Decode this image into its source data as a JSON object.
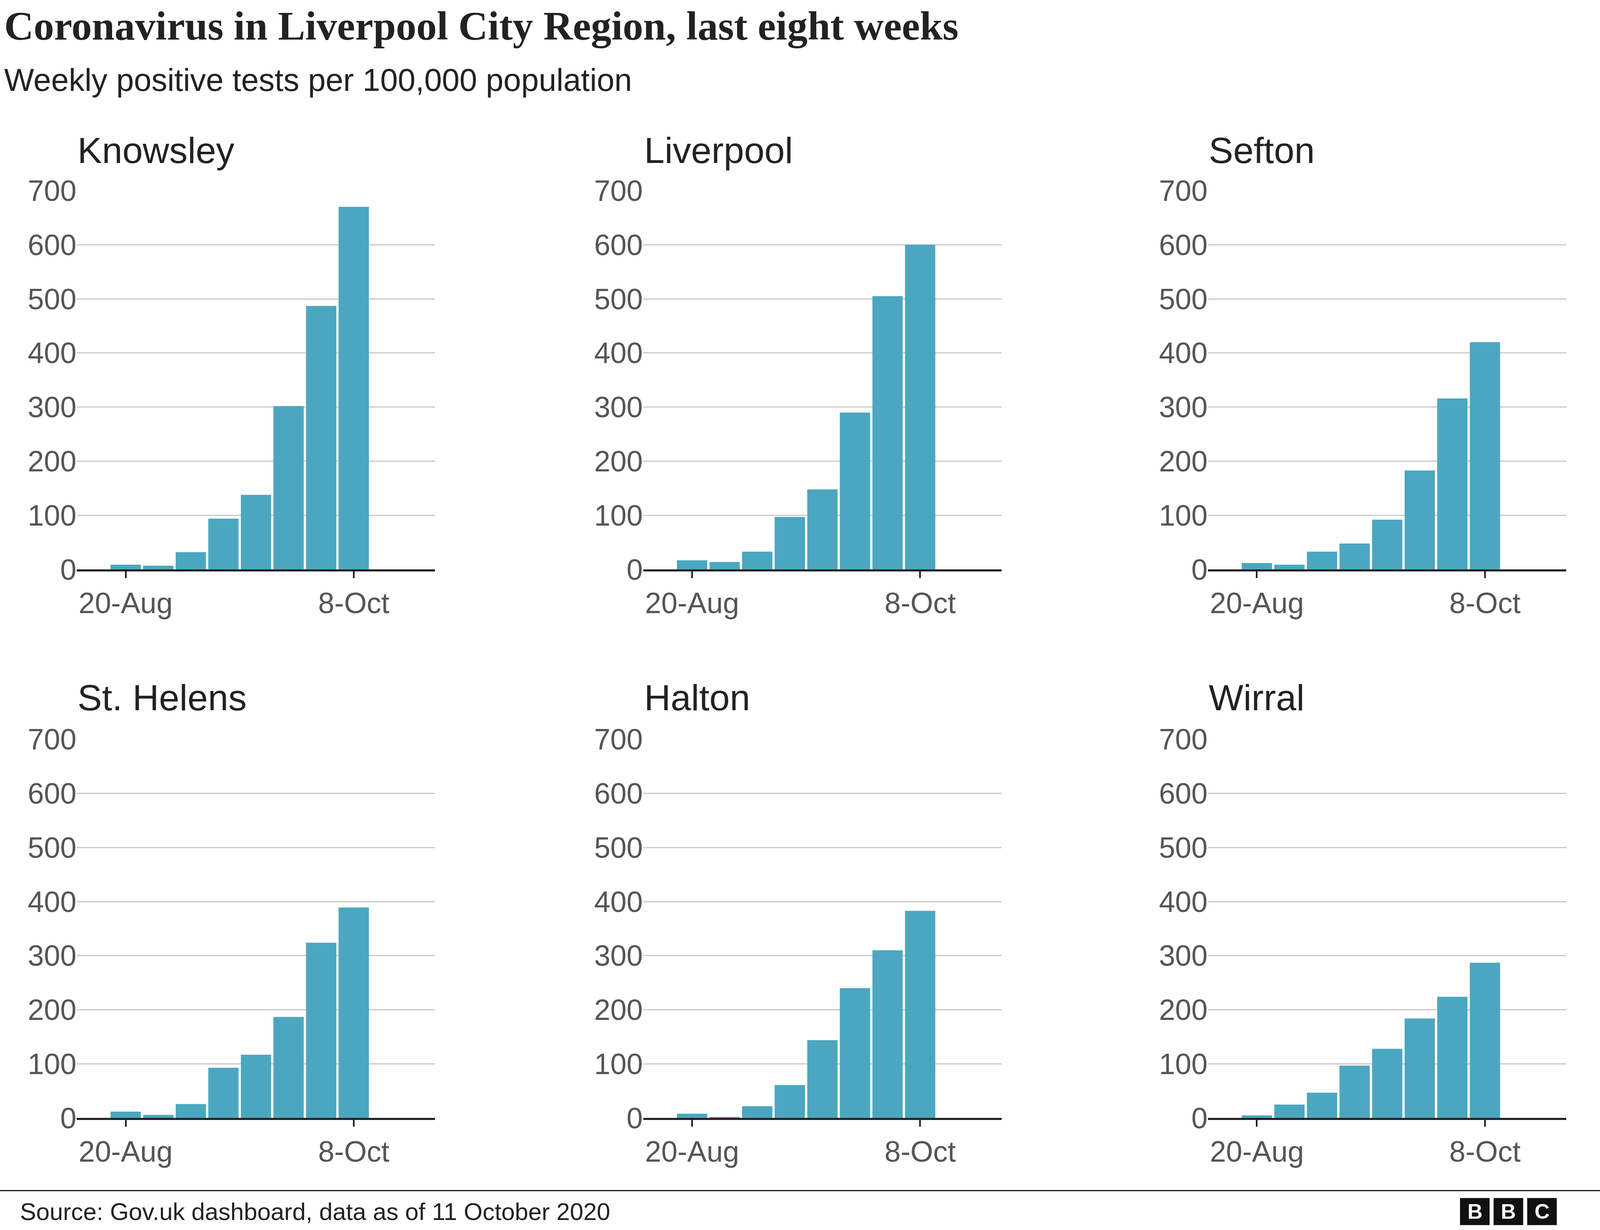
{
  "title": "Coronavirus in Liverpool City Region, last eight weeks",
  "subtitle": "Weekly positive tests per 100,000 population",
  "source": "Source: Gov.uk dashboard, data as of 11 October 2020",
  "logo": "BBC",
  "chart_data": [
    {
      "type": "bar",
      "title": "Knowsley",
      "categories": [
        "20-Aug",
        null,
        null,
        null,
        null,
        null,
        null,
        "8-Oct"
      ],
      "values": [
        9,
        7,
        32,
        94,
        138,
        302,
        487,
        670
      ],
      "color": "#4ba7bf",
      "ylim": [
        0,
        700
      ],
      "yticks": [
        0,
        100,
        200,
        300,
        400,
        500,
        600,
        700
      ],
      "grid": true
    },
    {
      "type": "bar",
      "title": "Liverpool",
      "categories": [
        "20-Aug",
        null,
        null,
        null,
        null,
        null,
        null,
        "8-Oct"
      ],
      "values": [
        17,
        14,
        33,
        97,
        148,
        290,
        505,
        600
      ],
      "color": "#4ba7bf",
      "ylim": [
        0,
        700
      ],
      "yticks": [
        0,
        100,
        200,
        300,
        400,
        500,
        600,
        700
      ],
      "grid": true
    },
    {
      "type": "bar",
      "title": "Sefton",
      "categories": [
        "20-Aug",
        null,
        null,
        null,
        null,
        null,
        null,
        "8-Oct"
      ],
      "values": [
        12,
        9,
        33,
        48,
        92,
        183,
        316,
        420
      ],
      "color": "#4ba7bf",
      "ylim": [
        0,
        700
      ],
      "yticks": [
        0,
        100,
        200,
        300,
        400,
        500,
        600,
        700
      ],
      "grid": true
    },
    {
      "type": "bar",
      "title": "St. Helens",
      "categories": [
        "20-Aug",
        null,
        null,
        null,
        null,
        null,
        null,
        "8-Oct"
      ],
      "values": [
        12,
        6,
        26,
        93,
        117,
        187,
        324,
        389
      ],
      "color": "#4ba7bf",
      "ylim": [
        0,
        700
      ],
      "yticks": [
        0,
        100,
        200,
        300,
        400,
        500,
        600,
        700
      ],
      "grid": true
    },
    {
      "type": "bar",
      "title": "Halton",
      "categories": [
        "20-Aug",
        null,
        null,
        null,
        null,
        null,
        null,
        "8-Oct"
      ],
      "values": [
        8,
        2,
        22,
        61,
        144,
        240,
        310,
        383
      ],
      "color": "#4ba7bf",
      "ylim": [
        0,
        700
      ],
      "yticks": [
        0,
        100,
        200,
        300,
        400,
        500,
        600,
        700
      ],
      "grid": true
    },
    {
      "type": "bar",
      "title": "Wirral",
      "categories": [
        "20-Aug",
        null,
        null,
        null,
        null,
        null,
        null,
        "8-Oct"
      ],
      "values": [
        5,
        25,
        47,
        97,
        128,
        184,
        224,
        287
      ],
      "color": "#4ba7bf",
      "ylim": [
        0,
        700
      ],
      "yticks": [
        0,
        100,
        200,
        300,
        400,
        500,
        600,
        700
      ],
      "grid": true
    }
  ]
}
